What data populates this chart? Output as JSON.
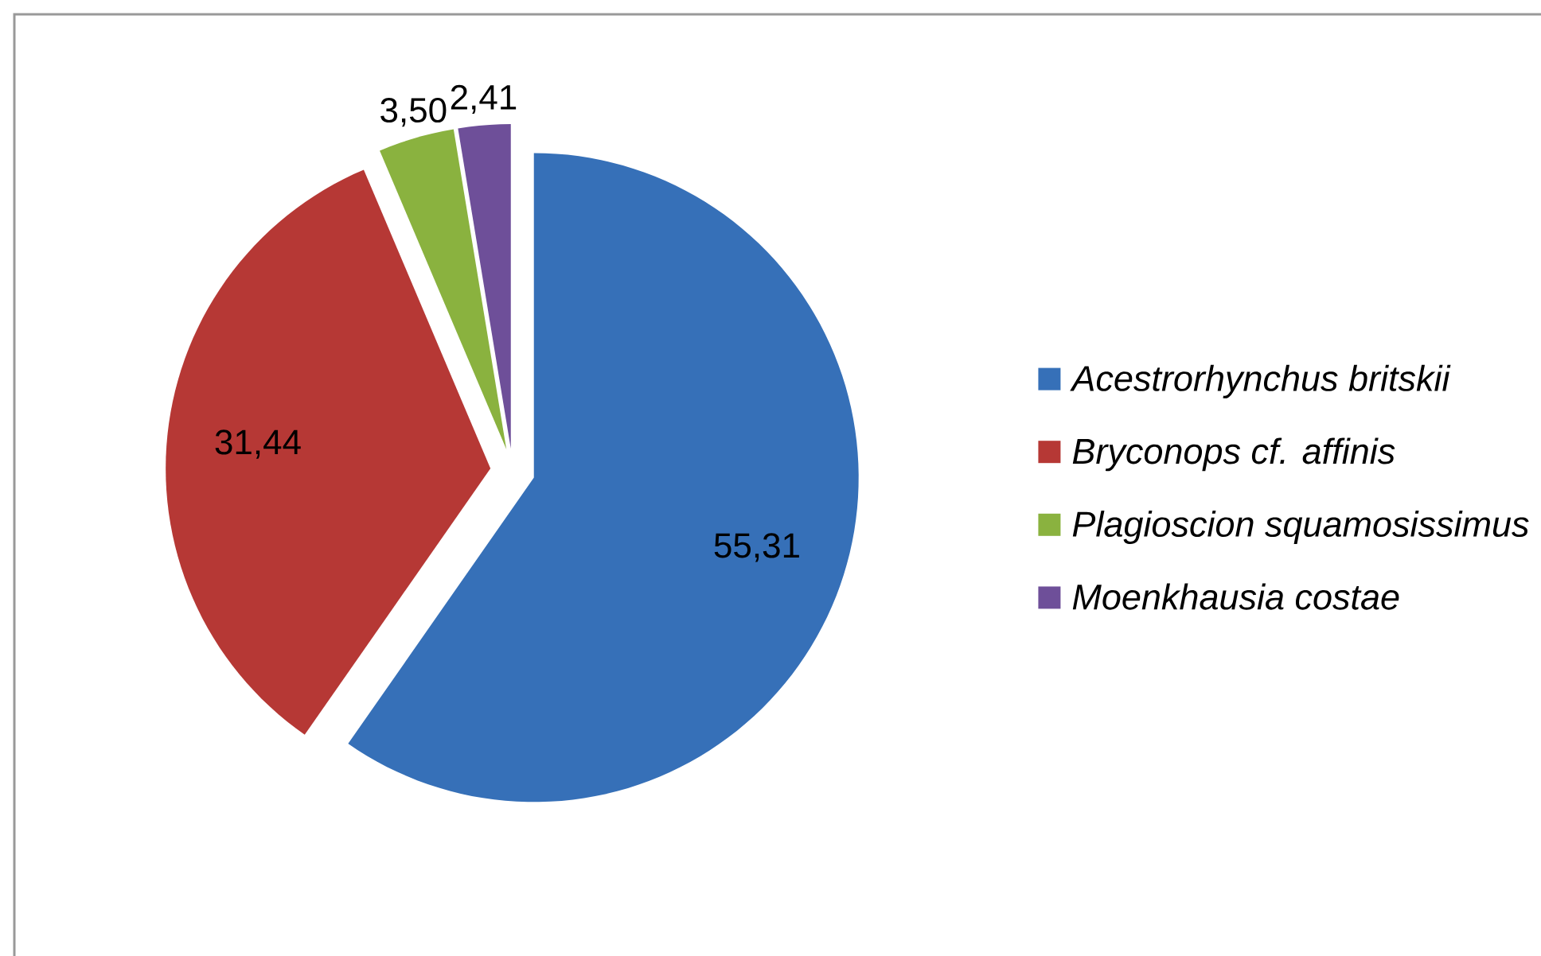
{
  "chart_data": {
    "type": "pie",
    "categories": [
      "Acestrorhynchus britskii",
      "Bryconops cf. affinis",
      "Plagioscion squamosissimus",
      "Moenkhausia costae"
    ],
    "values": [
      55.31,
      31.44,
      3.5,
      2.41
    ],
    "colors": [
      "#3670b8",
      "#b63835",
      "#8ab23f",
      "#6e4f99"
    ],
    "value_labels": [
      "55,31",
      "31,44",
      "3,50",
      "2,41"
    ],
    "legend": "right"
  }
}
